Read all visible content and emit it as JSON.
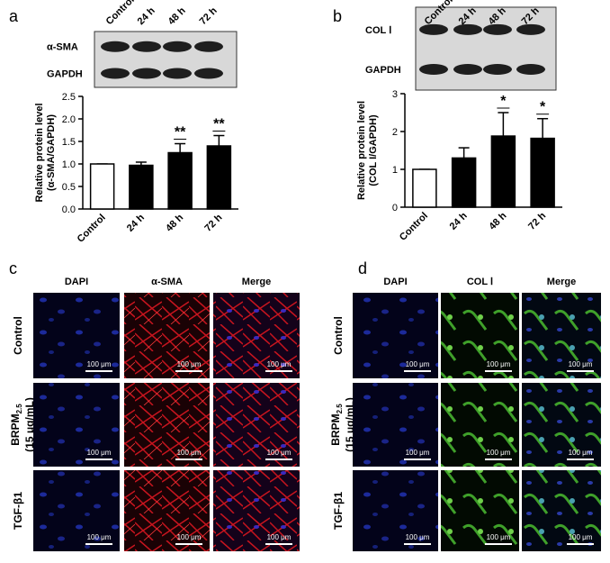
{
  "chart_data": [
    {
      "type": "bar",
      "panel": "a",
      "ylabel": [
        "Relative protein level",
        "(α-SMA/GAPDH)"
      ],
      "categories": [
        "Control",
        "24 h",
        "48 h",
        "72 h"
      ],
      "values": [
        1.0,
        0.97,
        1.25,
        1.4
      ],
      "errors": [
        0,
        0.07,
        0.2,
        0.23
      ],
      "colors": [
        "#ffffff",
        "#000000",
        "#000000",
        "#000000"
      ],
      "annotations": [
        null,
        null,
        "**",
        "**"
      ],
      "ylim": [
        0,
        2.5
      ],
      "yticks": [
        {
          "value": 0,
          "label": "0.0"
        },
        0.5,
        {
          "value": 1,
          "label": "1.0"
        },
        1.5,
        {
          "value": 2,
          "label": "2.0"
        },
        2.5
      ],
      "blot_rows": [
        "α-SMA",
        "GAPDH"
      ]
    },
    {
      "type": "bar",
      "panel": "b",
      "ylabel": [
        "Relative protein level",
        "(COL I/GAPDH)"
      ],
      "categories": [
        "Control",
        "24 h",
        "48 h",
        "72 h"
      ],
      "values": [
        1.0,
        1.3,
        1.88,
        1.82
      ],
      "errors": [
        0,
        0.27,
        0.62,
        0.52
      ],
      "colors": [
        "#ffffff",
        "#000000",
        "#000000",
        "#000000"
      ],
      "annotations": [
        null,
        null,
        "*",
        "*"
      ],
      "ylim": [
        0,
        3
      ],
      "yticks": [
        0,
        1,
        2,
        3
      ],
      "blot_rows": [
        "COL Ⅰ",
        "GAPDH"
      ]
    }
  ],
  "micrographs": [
    {
      "panel": "c",
      "columns": [
        "DAPI",
        "α-SMA",
        "Merge"
      ],
      "rows": [
        [
          "Control"
        ],
        [
          "BRPM",
          "2.5",
          "(15 μg/mL)"
        ],
        [
          "TGF-β1"
        ]
      ],
      "scale_bar": "100 μm"
    },
    {
      "panel": "d",
      "columns": [
        "DAPI",
        "COL Ⅰ",
        "Merge"
      ],
      "rows": [
        [
          "Control"
        ],
        [
          "BRPM",
          "2.5",
          "(15 μg/mL)"
        ],
        [
          "TGF-β1"
        ]
      ],
      "scale_bar": "100 μm"
    }
  ]
}
